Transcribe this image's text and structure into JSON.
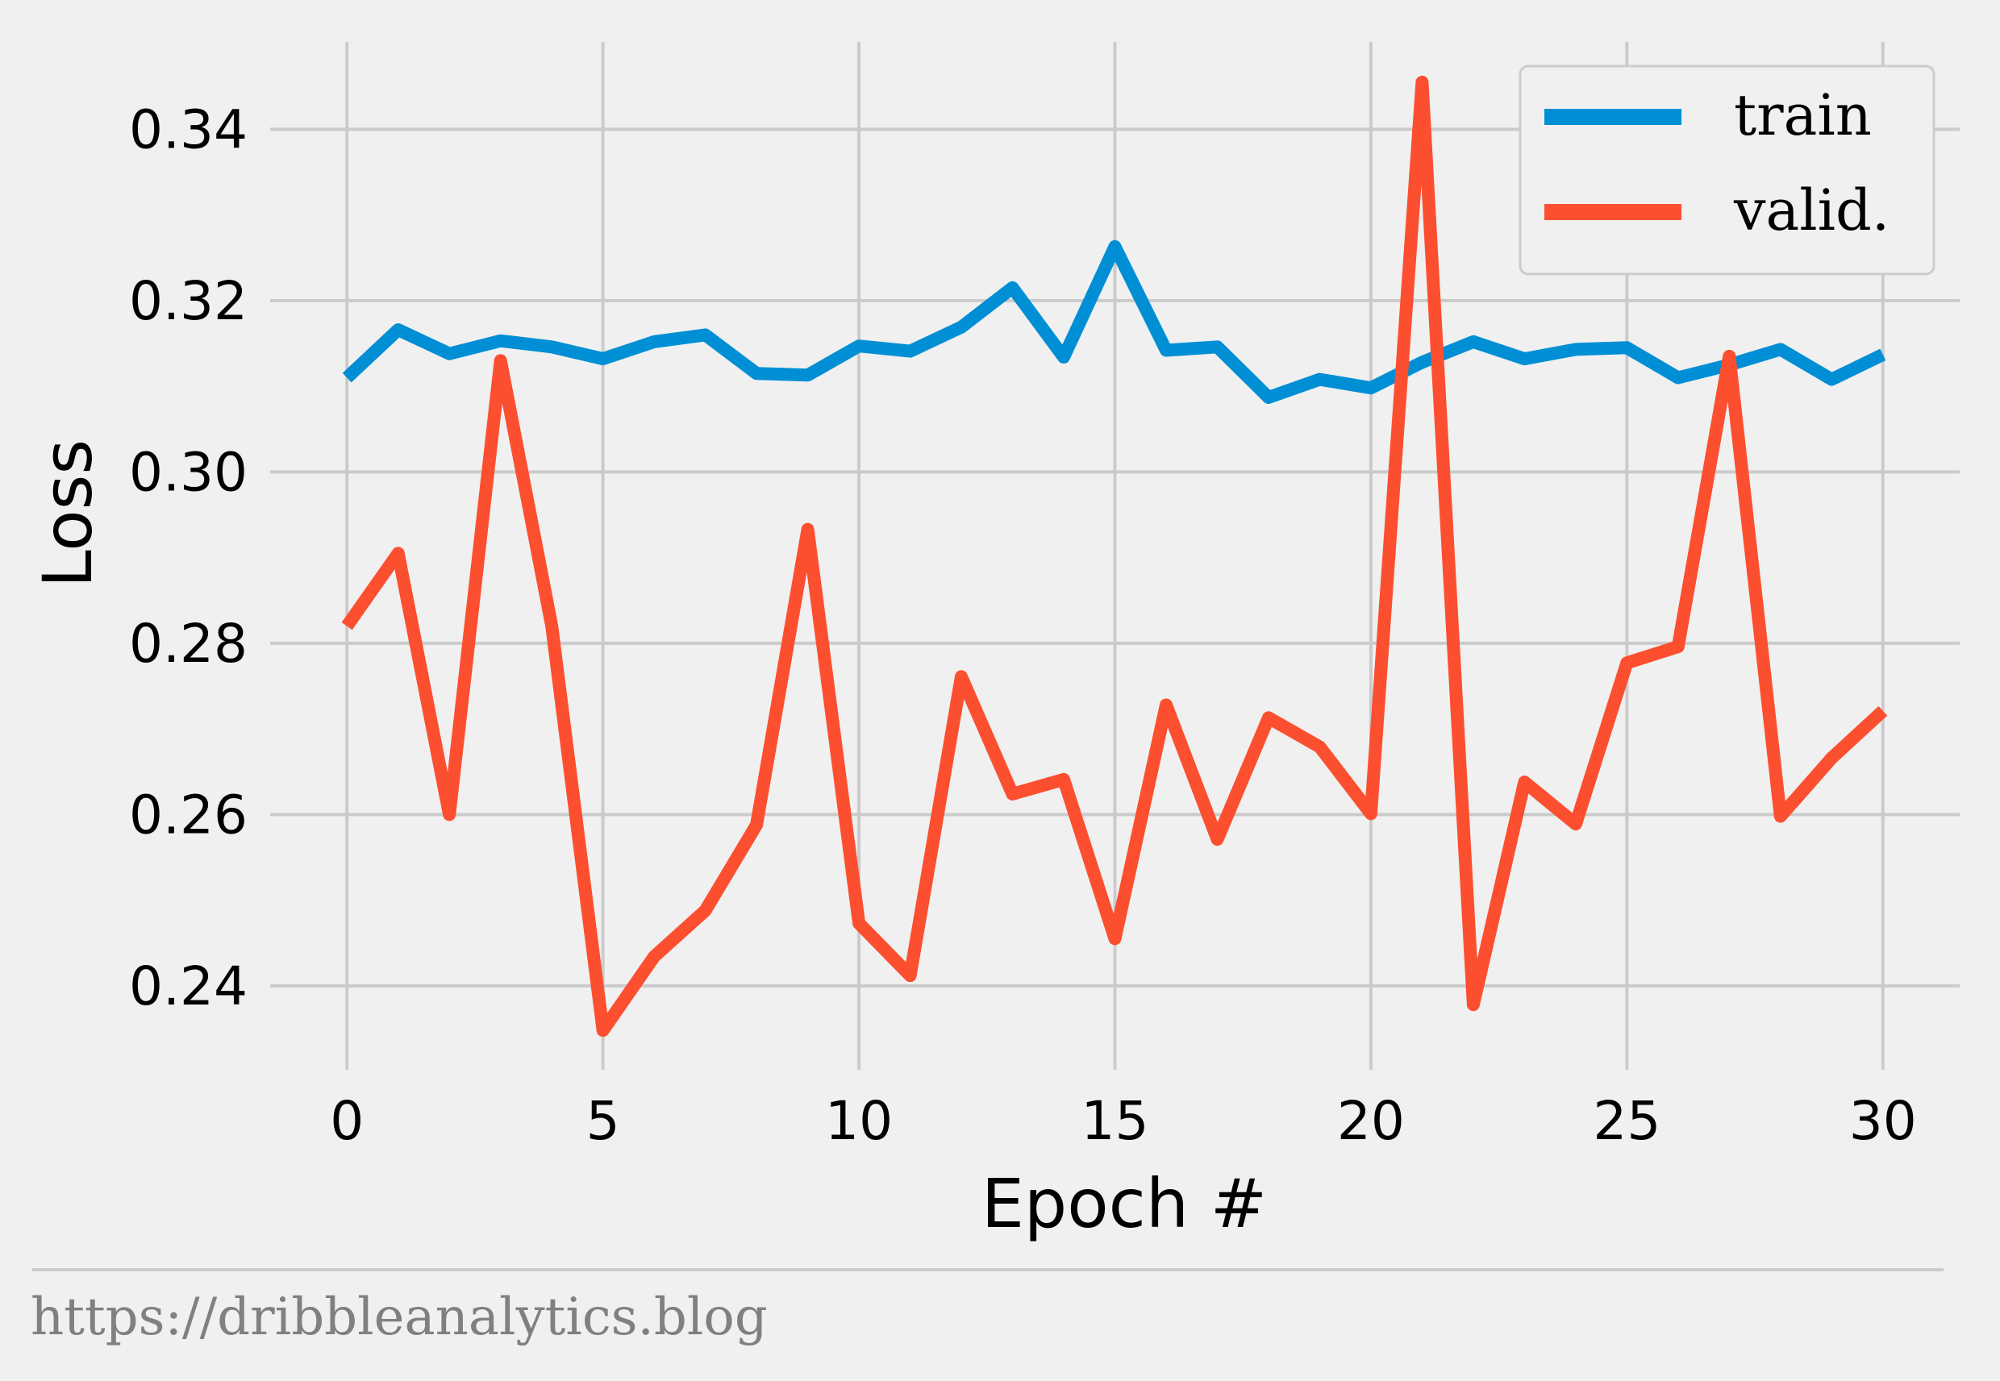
{
  "chart_data": {
    "type": "line",
    "xlabel": "Epoch #",
    "ylabel": "Loss",
    "xlim": [
      -1.5,
      31.5
    ],
    "ylim": [
      0.2302,
      0.3502
    ],
    "xticks": [
      0,
      5,
      10,
      15,
      20,
      25,
      30
    ],
    "yticks": [
      0.24,
      0.26,
      0.28,
      0.3,
      0.32,
      0.34
    ],
    "xtick_labels": [
      "0",
      "5",
      "10",
      "15",
      "20",
      "25",
      "30"
    ],
    "ytick_labels": [
      "0.24",
      "0.26",
      "0.28",
      "0.30",
      "0.32",
      "0.34"
    ],
    "grid": true,
    "legend_position": "top-right",
    "x": [
      0,
      1,
      2,
      3,
      4,
      5,
      6,
      7,
      8,
      9,
      10,
      11,
      12,
      13,
      14,
      15,
      16,
      17,
      18,
      19,
      20,
      21,
      22,
      23,
      24,
      25,
      26,
      27,
      28,
      29,
      30
    ],
    "series": [
      {
        "name": "train",
        "color": "#008fd5",
        "values": [
          0.311,
          0.3166,
          0.3138,
          0.3153,
          0.3146,
          0.3132,
          0.3152,
          0.316,
          0.3115,
          0.3113,
          0.3147,
          0.3141,
          0.3169,
          0.3215,
          0.3134,
          0.3263,
          0.3142,
          0.3146,
          0.3087,
          0.3108,
          0.3098,
          0.3128,
          0.3152,
          0.3132,
          0.3143,
          0.3145,
          0.311,
          0.3125,
          0.3143,
          0.3108,
          0.3137
        ]
      },
      {
        "name": "valid.",
        "color": "#fc4f30",
        "values": [
          0.282,
          0.2905,
          0.26,
          0.313,
          0.282,
          0.2348,
          0.2434,
          0.2488,
          0.2588,
          0.2933,
          0.2473,
          0.2412,
          0.2761,
          0.2624,
          0.2641,
          0.2455,
          0.2728,
          0.2571,
          0.2713,
          0.2679,
          0.2601,
          0.3455,
          0.2378,
          0.2638,
          0.2589,
          0.2777,
          0.2796,
          0.3135,
          0.2598,
          0.2666,
          0.2721
        ]
      }
    ]
  },
  "footer": {
    "source_text": "https://dribbleanalytics.blog"
  }
}
